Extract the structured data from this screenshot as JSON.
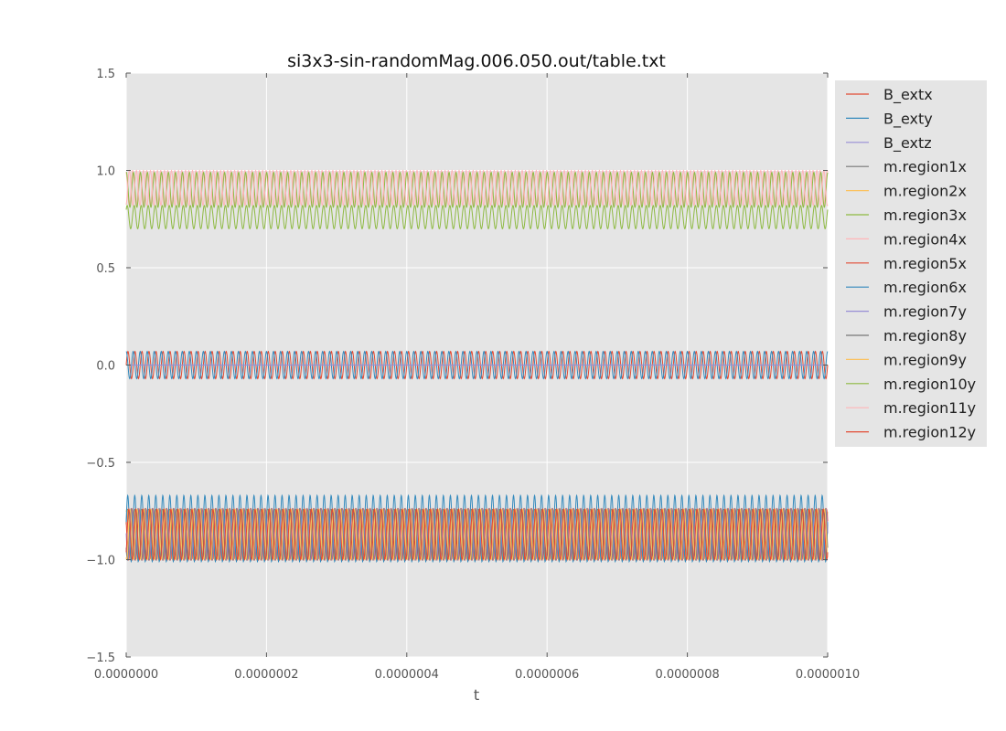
{
  "chart_data": {
    "type": "line",
    "title": "si3x3-sin-randomMag.006.050.out/table.txt",
    "xlabel": "t",
    "ylabel": "",
    "xlim": [
      0,
      1e-06
    ],
    "ylim": [
      -1.5,
      1.5
    ],
    "x_ticks": [
      "0.0000000",
      "0.0000002",
      "0.0000004",
      "0.0000006",
      "0.0000008",
      "0.0000010"
    ],
    "y_ticks": [
      "1.5",
      "1.0",
      "0.5",
      "0.0",
      "−0.5",
      "−1.0",
      "−1.5"
    ],
    "x_tick_values": [
      0,
      2e-07,
      4e-07,
      6e-07,
      8e-07,
      1e-06
    ],
    "y_tick_values": [
      1.5,
      1.0,
      0.5,
      0.0,
      -0.5,
      -1.0,
      -1.5
    ],
    "grid": true,
    "background": "#e5e5e5",
    "legend_position": "outside-right",
    "oscillation_periods": 100,
    "series": [
      {
        "name": "B_extx",
        "color": "#e24a33",
        "center": 0.0,
        "amplitude": 0.07,
        "phase": 0.0
      },
      {
        "name": "B_exty",
        "color": "#348abd",
        "center": 0.0,
        "amplitude": 0.07,
        "phase": 1.57
      },
      {
        "name": "B_extz",
        "color": "#988ed5",
        "center": 0.0,
        "amplitude": 0.0,
        "phase": 0.0
      },
      {
        "name": "m.region1x",
        "color": "#777777",
        "center": -0.87,
        "amplitude": 0.13,
        "phase": 0.4
      },
      {
        "name": "m.region2x",
        "color": "#fbc15e",
        "center": -0.87,
        "amplitude": 0.13,
        "phase": 1.1
      },
      {
        "name": "m.region3x",
        "color": "#8eba42",
        "center": 0.76,
        "amplitude": 0.06,
        "phase": 0.7
      },
      {
        "name": "m.region4x",
        "color": "#ffb5b8",
        "center": 0.91,
        "amplitude": 0.09,
        "phase": 2.0
      },
      {
        "name": "m.region5x",
        "color": "#e24a33",
        "center": -0.87,
        "amplitude": 0.13,
        "phase": 2.6
      },
      {
        "name": "m.region6x",
        "color": "#348abd",
        "center": -0.84,
        "amplitude": 0.17,
        "phase": 0.2
      },
      {
        "name": "m.region7y",
        "color": "#988ed5",
        "center": -0.87,
        "amplitude": 0.13,
        "phase": 3.1
      },
      {
        "name": "m.region8y",
        "color": "#777777",
        "center": -0.87,
        "amplitude": 0.13,
        "phase": 3.7
      },
      {
        "name": "m.region9y",
        "color": "#fbc15e",
        "center": -0.87,
        "amplitude": 0.13,
        "phase": 4.3
      },
      {
        "name": "m.region10y",
        "color": "#8eba42",
        "center": 0.9,
        "amplitude": 0.09,
        "phase": 1.4
      },
      {
        "name": "m.region11y",
        "color": "#ffb5b8",
        "center": 0.91,
        "amplitude": 0.09,
        "phase": 5.0
      },
      {
        "name": "m.region12y",
        "color": "#e24a33",
        "center": -0.87,
        "amplitude": 0.13,
        "phase": 5.5
      }
    ]
  }
}
